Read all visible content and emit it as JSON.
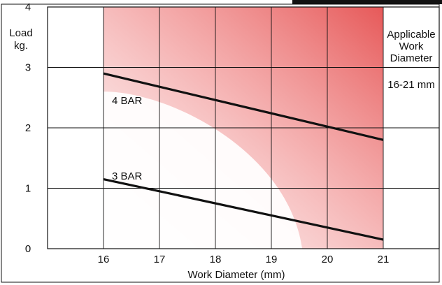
{
  "chart_data": {
    "type": "line",
    "title": "",
    "xlabel": "Work Diameter (mm)",
    "ylabel_lines": [
      "Load",
      "kg."
    ],
    "xlim": [
      15,
      22
    ],
    "ylim": [
      0,
      4
    ],
    "x_ticks": [
      {
        "value": 16,
        "label": "16"
      },
      {
        "value": 17,
        "label": "17"
      },
      {
        "value": 18,
        "label": "18"
      },
      {
        "value": 19,
        "label": "19"
      },
      {
        "value": 20,
        "label": "20"
      },
      {
        "value": 21,
        "label": "21"
      }
    ],
    "y_ticks": [
      {
        "value": 0,
        "label": "0"
      },
      {
        "value": 1,
        "label": "1"
      },
      {
        "value": 2,
        "label": "2"
      },
      {
        "value": 3,
        "label": "3"
      },
      {
        "value": 4,
        "label": "4"
      }
    ],
    "grid": true,
    "series": [
      {
        "name": "4 BAR",
        "x": [
          16,
          21
        ],
        "y": [
          2.9,
          1.8
        ],
        "label_anchor": {
          "x": 16,
          "y": 2.45
        }
      },
      {
        "name": "3 BAR",
        "x": [
          16,
          21
        ],
        "y": [
          1.15,
          0.15
        ],
        "label_anchor": {
          "x": 16,
          "y": 1.2
        }
      }
    ],
    "shaded_region": {
      "x_range": [
        16,
        21
      ],
      "color_from": "#e75656",
      "color_to": "#ffffff"
    },
    "side_panel": {
      "heading_lines": [
        "Applicable",
        "Work",
        "Diameter"
      ],
      "value": "16-21 mm"
    },
    "colors": {
      "line": "#111111",
      "grid": "#111111",
      "shade_top": "#e75656"
    }
  }
}
